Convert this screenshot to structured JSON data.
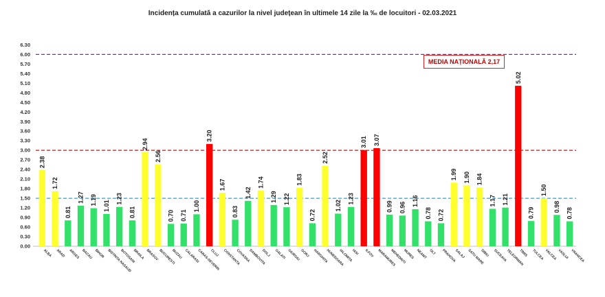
{
  "chart_data": {
    "type": "bar",
    "title": "Incidența cumulată a cazurilor la nivel județean în ultimele 14 zile la ‰ de locuitori - 02.03.2021",
    "xlabel": "",
    "ylabel": "",
    "ylim": [
      0,
      6.3
    ],
    "yticks": [
      "0.00",
      "0.30",
      "0.60",
      "0.90",
      "1.20",
      "1.50",
      "1.80",
      "2.10",
      "2.40",
      "2.70",
      "3.00",
      "3.30",
      "3.60",
      "3.90",
      "4.20",
      "4.50",
      "4.80",
      "5.10",
      "5.40",
      "5.70",
      "6.00",
      "6.30"
    ],
    "categories": [
      "ALBA",
      "ARAD",
      "ARGES",
      "BACAU",
      "BIHOR",
      "BISTRITA NASAUD",
      "BOTOSANI",
      "BRAILA",
      "BRASOV",
      "BUCURESTI",
      "BUZAU",
      "CALARASI",
      "CARAS-SEVERIN",
      "CLUJ",
      "CONSTANTA",
      "COVASNA",
      "DAMBOVITA",
      "DOLJ",
      "GALATI",
      "GIURGIU",
      "GORJ",
      "HARGHITA",
      "HUNEDOARA",
      "IALOMITA",
      "IASI",
      "ILFOV",
      "MARAMURES",
      "MEHEDINTI",
      "MURES",
      "NEAMT",
      "OLT",
      "PRAHOVA",
      "SALAJ",
      "SATU MARE",
      "SIBIU",
      "SUCEAVA",
      "TELEORMAN",
      "TIMIS",
      "TULCEA",
      "VALCEA",
      "VASLUI",
      "VRANCEA"
    ],
    "values": [
      2.38,
      1.72,
      0.81,
      1.27,
      1.19,
      1.01,
      1.23,
      0.81,
      2.94,
      2.56,
      0.7,
      0.71,
      1.0,
      3.2,
      1.67,
      0.83,
      1.42,
      1.74,
      1.29,
      1.22,
      1.83,
      0.72,
      2.52,
      1.02,
      1.23,
      3.01,
      3.07,
      0.99,
      0.96,
      1.16,
      0.78,
      0.72,
      1.99,
      1.9,
      1.84,
      1.17,
      1.21,
      5.02,
      0.79,
      1.5,
      0.98,
      0.78
    ],
    "value_labels": [
      "2.38",
      "1.72",
      "0.81",
      "1.27",
      "1.19",
      "1.01",
      "1.23",
      "0.81",
      "2.94",
      "2.56",
      "0.70",
      "0.71",
      "1.00",
      "3.20",
      "1.67",
      "0.83",
      "1.42",
      "1.74",
      "1.29",
      "1.22",
      "1.83",
      "0.72",
      "2.52",
      "1.02",
      "1.23",
      "3.01",
      "3.07",
      "0.99",
      "0.96",
      "1.16",
      "0.78",
      "0.72",
      "1.99",
      "1.90",
      "1.84",
      "1.17",
      "1.21",
      "5.02",
      "0.79",
      "1.50",
      "0.98",
      "0.78"
    ],
    "reference_lines": [
      {
        "name": "6‰",
        "value": 6.0,
        "color": "#7030a0"
      },
      {
        "name": "3‰",
        "value": 3.0,
        "color": "#e02020"
      },
      {
        "name": "1.5‰",
        "value": 1.5,
        "color": "#2e9fd6"
      }
    ],
    "annotation": "MEDIA NAȚIONALĂ 2,17",
    "colors": {
      "green": "#33e06a",
      "yellow": "#ffff2e",
      "red": "#ff0000"
    }
  }
}
